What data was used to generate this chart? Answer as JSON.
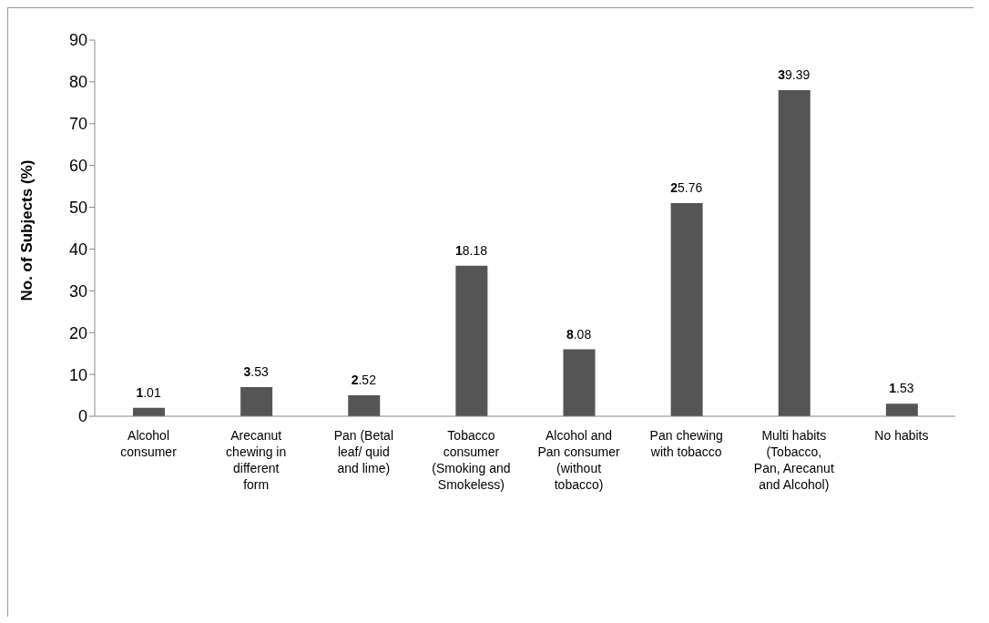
{
  "chart_data": {
    "type": "bar",
    "ylabel": "No. of Subjects (%)",
    "categories": [
      "Alcohol consumer",
      "Arecanut chewing in different form",
      "Pan (Betal leaf/ quid and lime)",
      "Tobacco consumer (Smoking and Smokeless)",
      "Alcohol and Pan consumer (without tobacco)",
      "Pan chewing with tobacco",
      "Multi habits (Tobacco, Pan, Arecanut and Alcohol)",
      "No habits"
    ],
    "values": [
      2,
      7,
      5,
      36,
      16,
      51,
      78,
      3
    ],
    "annotations": [
      {
        "text": "1.01",
        "x": "Alcohol consumer",
        "y": 2
      },
      {
        "text": "3.53",
        "x": "Arecanut chewing in different form",
        "y": 7
      },
      {
        "text": "2.52",
        "x": "Pan (Betal leaf/ quid and lime)",
        "y": 5
      },
      {
        "text": "18.18",
        "x": "Tobacco consumer (Smoking and Smokeless)",
        "y": 36
      },
      {
        "text": "8.08",
        "x": "Alcohol and Pan consumer (without tobacco)",
        "y": 16
      },
      {
        "text": "25.76",
        "x": "Pan chewing with tobacco",
        "y": 51
      },
      {
        "text": "39.39",
        "x": "Multi habits (Tobacco, Pan, Arecanut and Alcohol)",
        "y": 78
      },
      {
        "text": "1.53",
        "x": "No habits",
        "y": 3
      }
    ],
    "color": "#555555",
    "ylim": [
      0,
      90
    ],
    "yticks": [
      0,
      10,
      20,
      30,
      40,
      50,
      60,
      70,
      80,
      90
    ],
    "grid": false,
    "legend": false
  }
}
